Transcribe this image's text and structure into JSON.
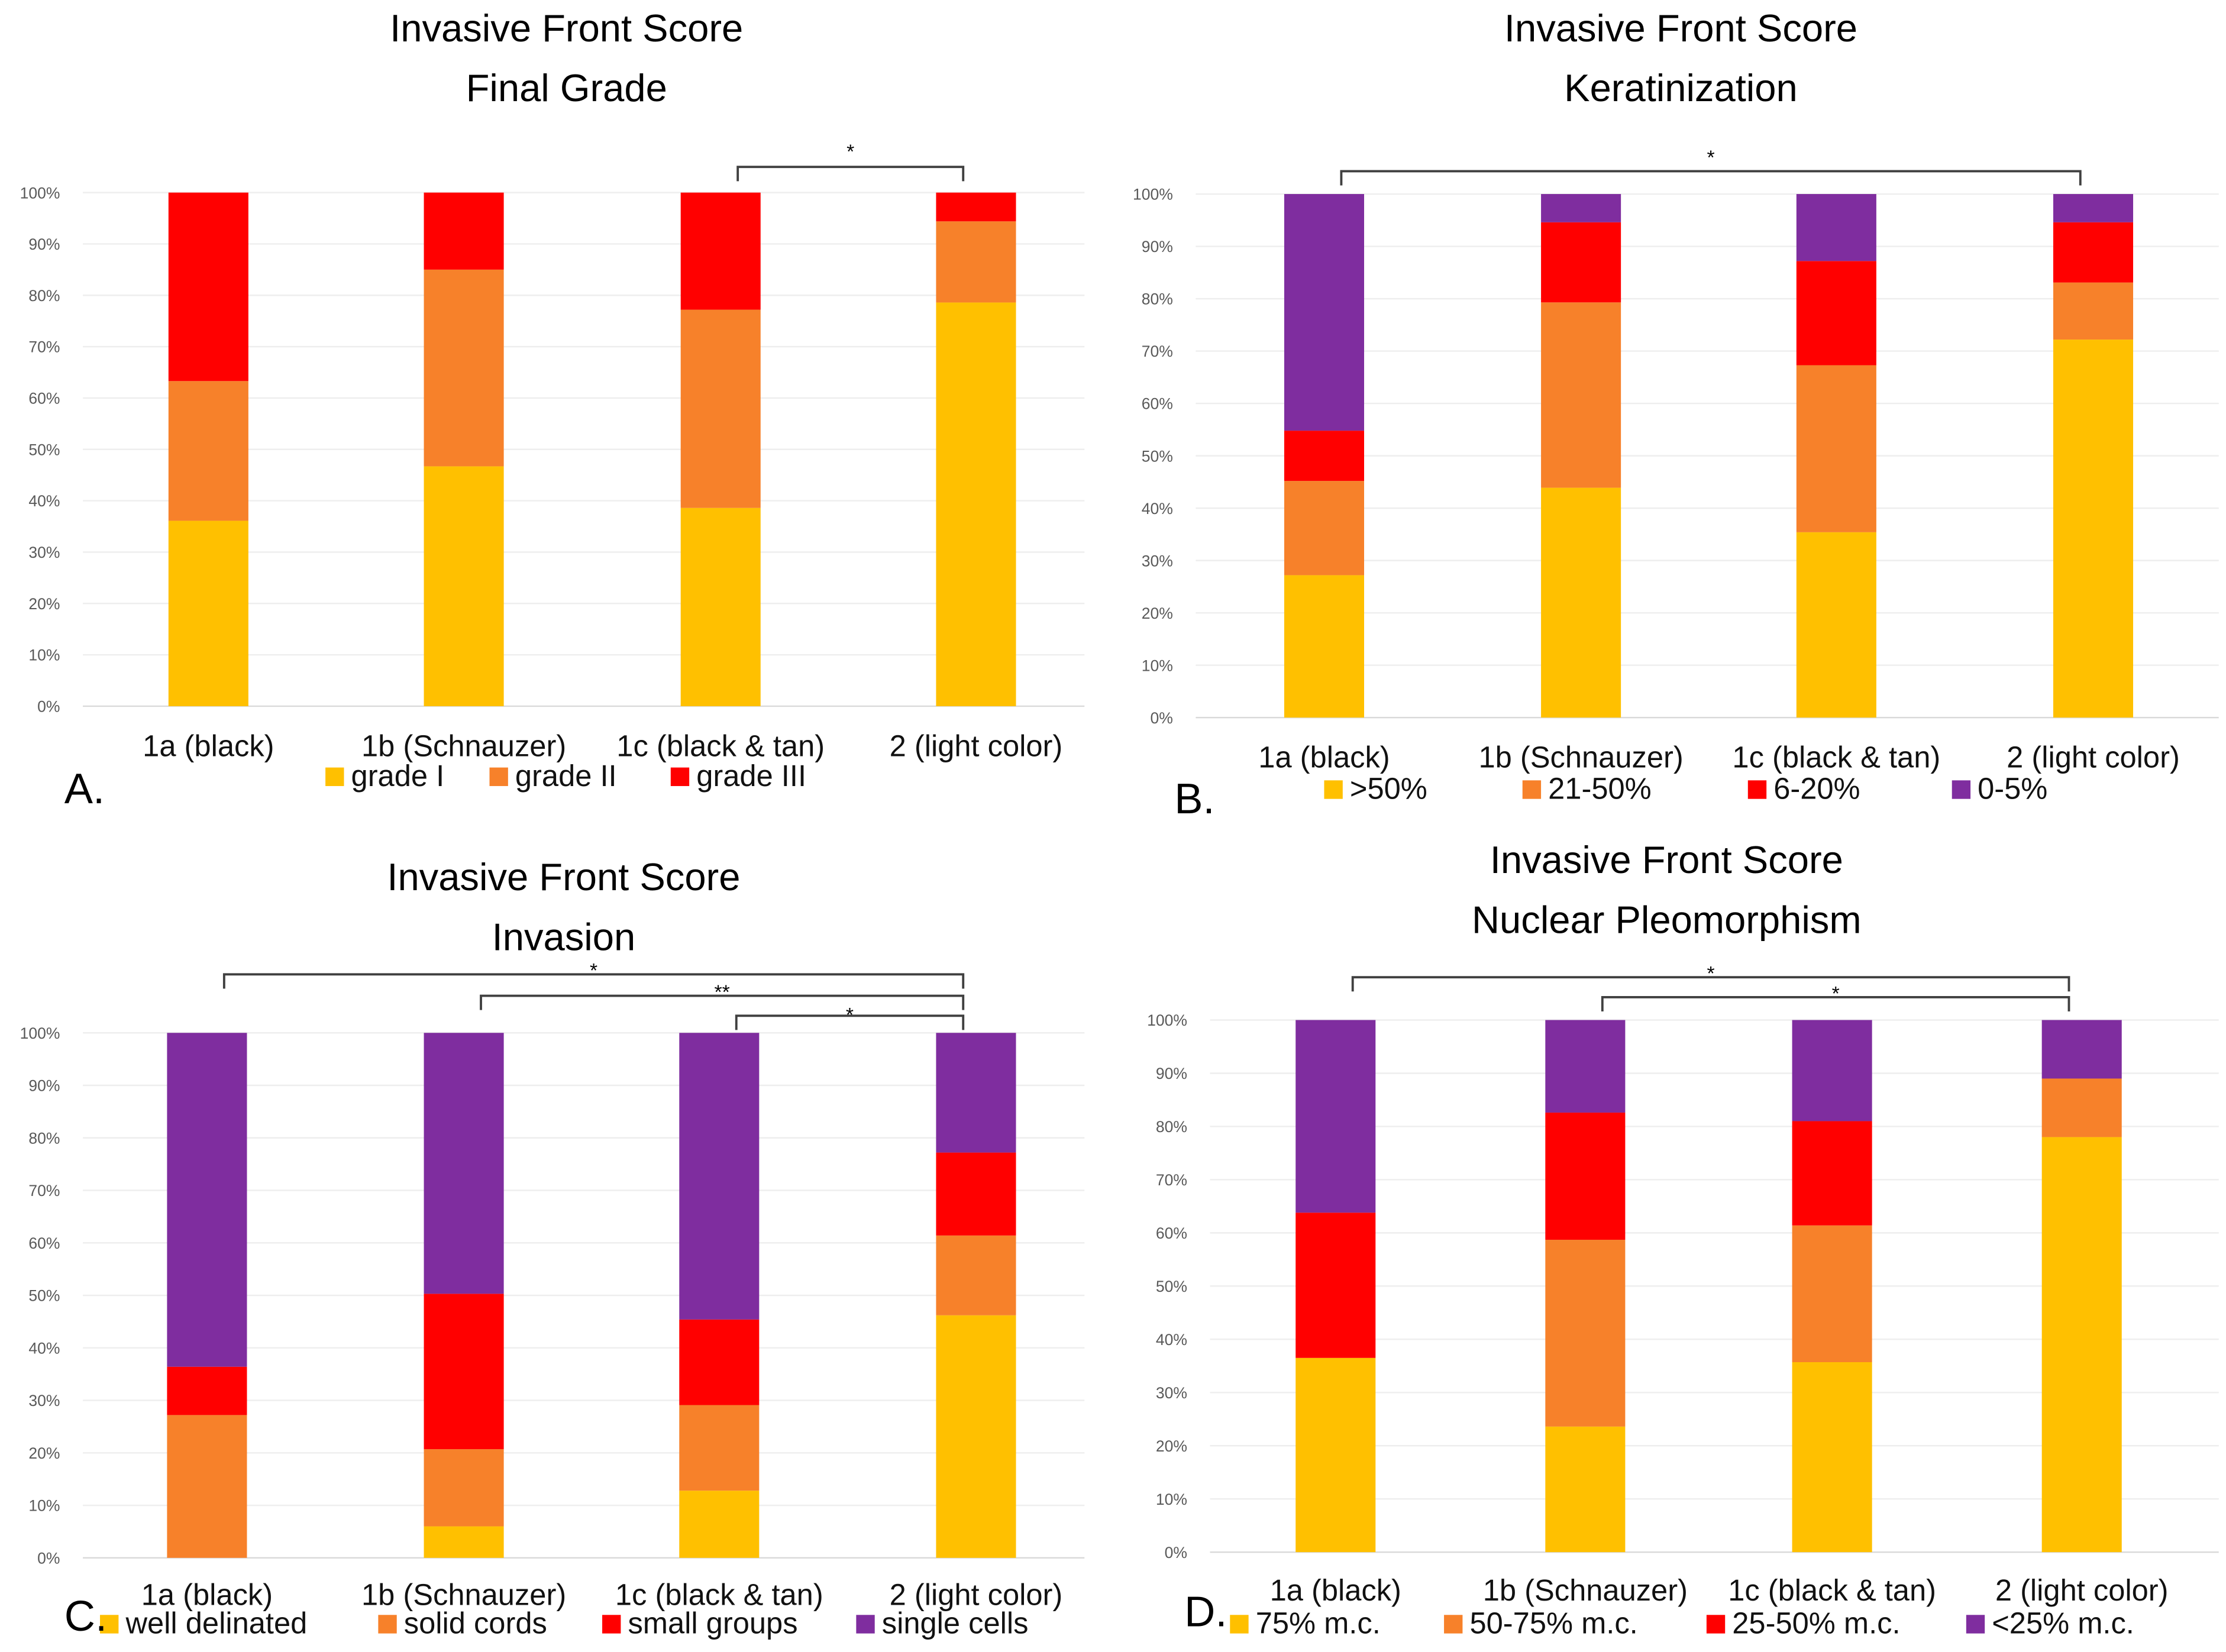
{
  "colors": {
    "yellow": "#FFC000",
    "orange": "#F7812A",
    "red": "#FF0000",
    "purple": "#7F2D9F"
  },
  "chart_data": [
    {
      "panel": "A.",
      "type": "bar",
      "stacked": true,
      "title": [
        "Invasive Front Score",
        "Final Grade"
      ],
      "categories": [
        "1a (black)",
        "1b (Schnauzer)",
        "1c (black & tan)",
        "2 (light color)"
      ],
      "yticks": [
        "0%",
        "10%",
        "20%",
        "30%",
        "40%",
        "50%",
        "60%",
        "70%",
        "80%",
        "90%",
        "100%"
      ],
      "ylim": [
        0,
        100
      ],
      "legend_position": "bottom",
      "series": [
        {
          "name": "grade I",
          "color": "#FFC000",
          "values": [
            36.1,
            46.7,
            38.6,
            78.6
          ]
        },
        {
          "name": "grade II",
          "color": "#F7812A",
          "values": [
            27.2,
            38.3,
            38.6,
            15.8
          ]
        },
        {
          "name": "grade III",
          "color": "#FF0000",
          "values": [
            36.7,
            15.0,
            22.8,
            5.6
          ]
        }
      ],
      "significance": [
        {
          "from": 2,
          "to": 3,
          "label": "*"
        }
      ]
    },
    {
      "panel": "B.",
      "type": "bar",
      "stacked": true,
      "title": [
        "Invasive Front Score",
        "Keratinization"
      ],
      "categories": [
        "1a (black)",
        "1b (Schnauzer)",
        "1c (black & tan)",
        "2 (light color)"
      ],
      "yticks": [
        "0%",
        "10%",
        "20%",
        "30%",
        "40%",
        "50%",
        "60%",
        "70%",
        "80%",
        "90%",
        "100%"
      ],
      "ylim": [
        0,
        100
      ],
      "legend_position": "bottom",
      "series": [
        {
          "name": ">50%",
          "color": "#FFC000",
          "values": [
            27.2,
            43.9,
            35.4,
            72.2
          ]
        },
        {
          "name": "21-50%",
          "color": "#F7812A",
          "values": [
            18.0,
            35.4,
            31.9,
            10.9
          ]
        },
        {
          "name": "6-20%",
          "color": "#FF0000",
          "values": [
            9.6,
            15.3,
            19.9,
            11.5
          ]
        },
        {
          "name": "0-5%",
          "color": "#7F2D9F",
          "values": [
            45.2,
            5.4,
            12.8,
            5.4
          ]
        }
      ],
      "significance": [
        {
          "from": 0,
          "to": 3,
          "label": "*"
        }
      ]
    },
    {
      "panel": "C.",
      "type": "bar",
      "stacked": true,
      "title": [
        "Invasive Front Score",
        "Invasion"
      ],
      "categories": [
        "1a (black)",
        "1b (Schnauzer)",
        "1c (black & tan)",
        "2 (light color)"
      ],
      "yticks": [
        "0%",
        "10%",
        "20%",
        "30%",
        "40%",
        "50%",
        "60%",
        "70%",
        "80%",
        "90%",
        "100%"
      ],
      "ylim": [
        0,
        100
      ],
      "legend_position": "bottom",
      "series": [
        {
          "name": "well delinated",
          "color": "#FFC000",
          "values": [
            0,
            6.0,
            12.8,
            46.2
          ]
        },
        {
          "name": "solid cords",
          "color": "#F7812A",
          "values": [
            27.2,
            14.7,
            16.3,
            15.2
          ]
        },
        {
          "name": "small groups",
          "color": "#FF0000",
          "values": [
            9.2,
            29.6,
            16.3,
            15.8
          ]
        },
        {
          "name": "single cells",
          "color": "#7F2D9F",
          "values": [
            63.6,
            49.7,
            54.6,
            22.8
          ]
        }
      ],
      "significance": [
        {
          "from": 0,
          "to": 3,
          "label": "*"
        },
        {
          "from": 1,
          "to": 3,
          "label": "**"
        },
        {
          "from": 2,
          "to": 3,
          "label": "*"
        }
      ]
    },
    {
      "panel": "D.",
      "type": "bar",
      "stacked": true,
      "title": [
        "Invasive Front Score",
        "Nuclear Pleomorphism"
      ],
      "categories": [
        "1a (black)",
        "1b (Schnauzer)",
        "1c (black & tan)",
        "2 (light color)"
      ],
      "yticks": [
        "0%",
        "10%",
        "20%",
        "30%",
        "40%",
        "50%",
        "60%",
        "70%",
        "80%",
        "90%",
        "100%"
      ],
      "ylim": [
        0,
        100
      ],
      "legend_position": "bottom",
      "series": [
        {
          "name": "75% m.c.",
          "color": "#FFC000",
          "values": [
            36.5,
            23.6,
            35.7,
            78.0
          ]
        },
        {
          "name": "50-75% m.c.",
          "color": "#F7812A",
          "values": [
            0,
            35.1,
            25.7,
            11.0
          ]
        },
        {
          "name": "25-50% m.c.",
          "color": "#FF0000",
          "values": [
            27.3,
            23.9,
            19.6,
            0
          ]
        },
        {
          "name": "<25% m.c.",
          "color": "#7F2D9F",
          "values": [
            36.2,
            17.4,
            19.0,
            11.0
          ]
        }
      ],
      "significance": [
        {
          "from": 0,
          "to": 3,
          "label": "*"
        },
        {
          "from": 1,
          "to": 3,
          "label": "*"
        }
      ]
    }
  ]
}
